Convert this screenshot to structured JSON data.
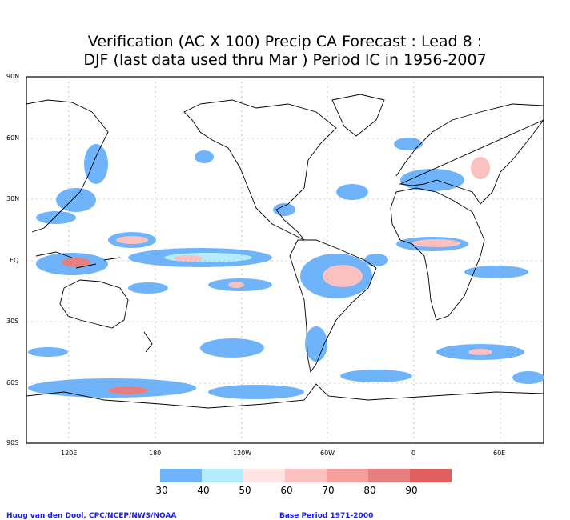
{
  "title_line1": "Verification (AC X 100) Precip CA Forecast : Lead 8 :",
  "title_line2": "DJF (last data used thru Mar ) Period IC in 1956-2007",
  "lat_labels": [
    "90N",
    "60N",
    "30N",
    "EQ",
    "30S",
    "60S",
    "90S"
  ],
  "lon_labels": [
    "120E",
    "180",
    "120W",
    "60W",
    "0",
    "60E"
  ],
  "colorbar": {
    "levels": [
      "30",
      "40",
      "50",
      "60",
      "70",
      "80",
      "90"
    ],
    "colors": [
      "#6fb4fb",
      "#b3ecfb",
      "#fde3e4",
      "#fbc0c0",
      "#f59f9f",
      "#e87f7f",
      "#e06060"
    ]
  },
  "footer_left": "Huug van den Dool, CPC/NCEP/NWS/NOAA",
  "footer_right": "Base Period 1971-2000"
}
